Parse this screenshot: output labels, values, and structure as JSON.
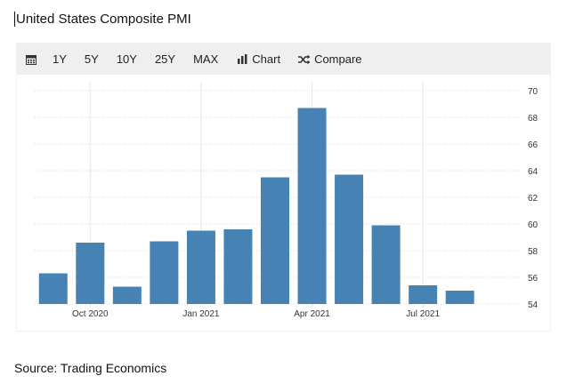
{
  "page": {
    "title": "United States Composite PMI",
    "source": "Source: Trading Economics"
  },
  "toolbar": {
    "calendar_icon": "calendar-icon",
    "ranges": [
      "1Y",
      "5Y",
      "10Y",
      "25Y",
      "MAX"
    ],
    "chart_label": "Chart",
    "chart_icon": "bar-chart-icon",
    "compare_label": "Compare",
    "compare_icon": "shuffle-icon"
  },
  "colors": {
    "bar": "#4682b4",
    "toolbar_bg": "#efefef",
    "grid": "#d9d9d9",
    "axis_text": "#333333"
  },
  "chart_data": {
    "type": "bar",
    "title": "United States Composite PMI",
    "categories": [
      "Sep 2020",
      "Oct 2020",
      "Nov 2020",
      "Dec 2020",
      "Jan 2021",
      "Feb 2021",
      "Mar 2021",
      "Apr 2021",
      "May 2021",
      "Jun 2021",
      "Jul 2021",
      "Aug 2021",
      "Sep 2021"
    ],
    "values": [
      56.3,
      58.6,
      55.3,
      58.7,
      59.5,
      59.6,
      63.5,
      68.7,
      63.7,
      59.9,
      55.4,
      55.0,
      null
    ],
    "x_tick_labels": [
      {
        "index": 1,
        "label": "Oct 2020"
      },
      {
        "index": 4,
        "label": "Jan 2021"
      },
      {
        "index": 7,
        "label": "Apr 2021"
      },
      {
        "index": 10,
        "label": "Jul 2021"
      }
    ],
    "y_ticks": [
      54,
      56,
      58,
      60,
      62,
      64,
      66,
      68,
      70
    ],
    "ylim": [
      54,
      70
    ],
    "y_axis_side": "right",
    "grid": true,
    "xlabel": "",
    "ylabel": ""
  }
}
